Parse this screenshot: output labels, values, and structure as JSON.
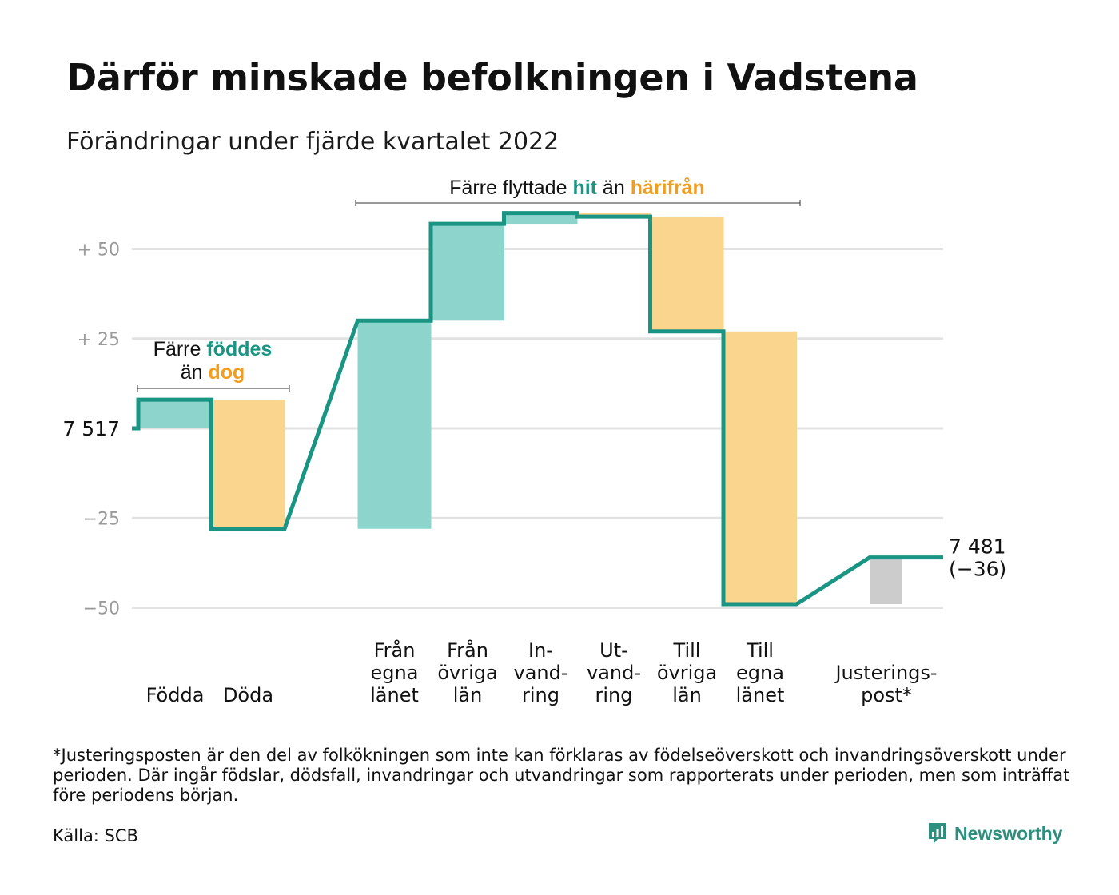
{
  "title": "Därför minskade befolkningen i Vadstena",
  "subtitle": "Förändringar under fjärde kvartalet 2022",
  "chart_data": {
    "type": "waterfall",
    "base_value": 7517,
    "base_label": "7 517",
    "end_label_lines": [
      "7 481",
      "(−36)"
    ],
    "ylim": [
      -55,
      62
    ],
    "y_ticks": [
      {
        "value": 50,
        "label": "+ 50"
      },
      {
        "value": 25,
        "label": "+ 25"
      },
      {
        "value": 0,
        "label": ""
      },
      {
        "value": -25,
        "label": "−25"
      },
      {
        "value": -50,
        "label": "−50"
      }
    ],
    "colors": {
      "positive": "#8dd5cc",
      "negative": "#f9d58d",
      "adjustment": "#cccccc",
      "line": "#1a9583",
      "grid": "#e2e2e2",
      "teal_text": "#1a9583",
      "orange_text": "#f29e1c"
    },
    "steps": [
      {
        "label_lines": [
          "Födda"
        ],
        "change": 8,
        "kind": "positive",
        "slot": 0
      },
      {
        "label_lines": [
          "Döda"
        ],
        "change": -36,
        "kind": "negative",
        "slot": 1
      },
      {
        "label_lines": [
          "Från",
          "egna",
          "länet"
        ],
        "change": 58,
        "kind": "positive",
        "slot": 3
      },
      {
        "label_lines": [
          "Från",
          "övriga",
          "län"
        ],
        "change": 27,
        "kind": "positive",
        "slot": 4
      },
      {
        "label_lines": [
          "In-",
          "vand-",
          "ring"
        ],
        "change": 3,
        "kind": "positive",
        "slot": 5
      },
      {
        "label_lines": [
          "Ut-",
          "vand-",
          "ring"
        ],
        "change": -1,
        "kind": "negative",
        "slot": 6
      },
      {
        "label_lines": [
          "Till",
          "övriga",
          "län"
        ],
        "change": -32,
        "kind": "negative",
        "slot": 7
      },
      {
        "label_lines": [
          "Till",
          "egna",
          "länet"
        ],
        "change": -76,
        "kind": "negative",
        "slot": 8
      },
      {
        "label_lines": [
          "Justerings-",
          "post*"
        ],
        "change": 13,
        "kind": "adjustment",
        "slot": 10
      }
    ],
    "annotations": [
      {
        "id": "births",
        "parts": [
          {
            "text": "Färre ",
            "style": "plain"
          },
          {
            "text": "föddes",
            "style": "teal"
          },
          {
            "text": "än ",
            "style": "plain",
            "newline": true
          },
          {
            "text": "dog",
            "style": "orange"
          }
        ]
      },
      {
        "id": "moves",
        "parts": [
          {
            "text": "Färre flyttade ",
            "style": "plain"
          },
          {
            "text": "hit",
            "style": "teal"
          },
          {
            "text": " än ",
            "style": "plain"
          },
          {
            "text": "härifrån",
            "style": "orange"
          }
        ]
      }
    ]
  },
  "footnote": "*Justeringsposten är den del av folkökningen som inte kan förklaras av födelseöverskott och invandringsöverskott under perioden. Där ingår födslar, dödsfall, invandringar och utvandringar som rapporterats under perioden, men som inträffat före periodens början.",
  "source": "Källa: SCB",
  "brand": "Newsworthy"
}
